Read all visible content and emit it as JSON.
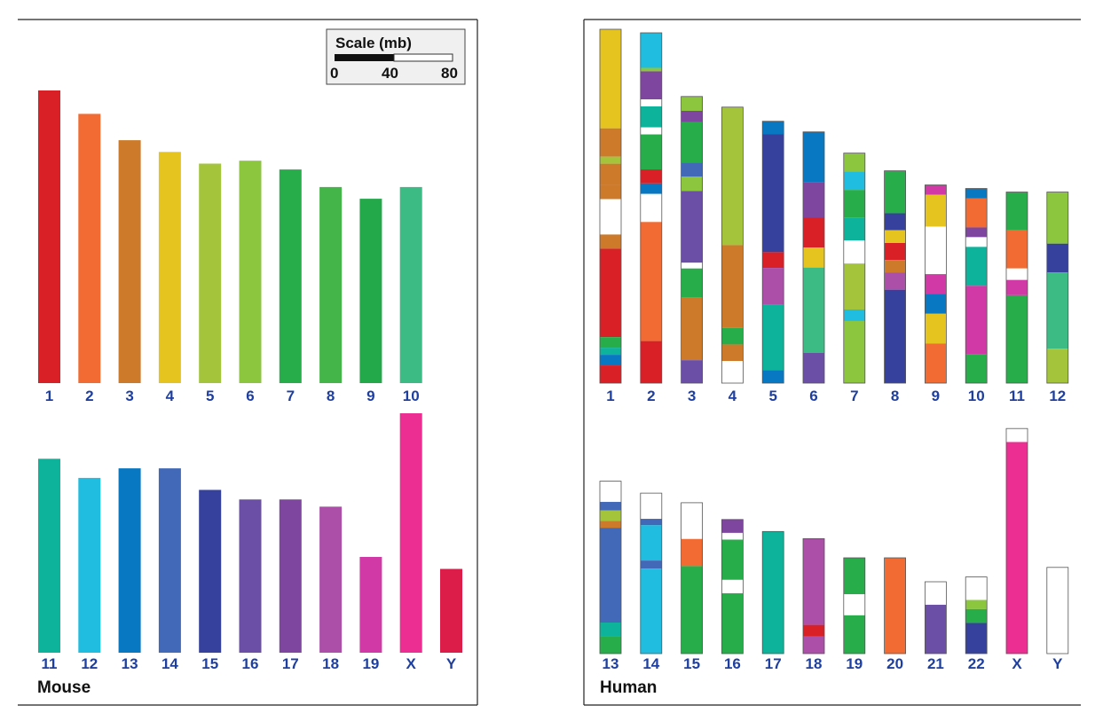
{
  "mouse": {
    "title": "Mouse",
    "row1": [
      {
        "label": "1",
        "color": "#d92027",
        "len": 1.0
      },
      {
        "label": "2",
        "color": "#f26b32",
        "len": 0.92
      },
      {
        "label": "3",
        "color": "#cd7a2a",
        "len": 0.83
      },
      {
        "label": "4",
        "color": "#e5c420",
        "len": 0.79
      },
      {
        "label": "5",
        "color": "#a3c43b",
        "len": 0.75
      },
      {
        "label": "6",
        "color": "#8cc63f",
        "len": 0.76
      },
      {
        "label": "7",
        "color": "#27ae4b",
        "len": 0.73
      },
      {
        "label": "8",
        "color": "#44b649",
        "len": 0.67
      },
      {
        "label": "9",
        "color": "#23a84a",
        "len": 0.63
      },
      {
        "label": "10",
        "color": "#3dbb85",
        "len": 0.67
      }
    ],
    "row2": [
      {
        "label": "11",
        "color": "#0db39a",
        "len": 0.81
      },
      {
        "label": "12",
        "color": "#21bde0",
        "len": 0.73
      },
      {
        "label": "13",
        "color": "#0778c1",
        "len": 0.77
      },
      {
        "label": "14",
        "color": "#4169b7",
        "len": 0.77
      },
      {
        "label": "15",
        "color": "#35419c",
        "len": 0.68
      },
      {
        "label": "16",
        "color": "#6b4fa6",
        "len": 0.64
      },
      {
        "label": "17",
        "color": "#7e469e",
        "len": 0.64
      },
      {
        "label": "18",
        "color": "#ab4fa8",
        "len": 0.61
      },
      {
        "label": "19",
        "color": "#d13aa6",
        "len": 0.4
      },
      {
        "label": "X",
        "color": "#ec2d92",
        "len": 1.0
      },
      {
        "label": "Y",
        "color": "#dc1d4a",
        "len": 0.35
      }
    ]
  },
  "scale": {
    "title": "Scale (mb)",
    "ticks": [
      "0",
      "40",
      "80"
    ]
  },
  "human": {
    "title": "Human",
    "row1": [
      {
        "label": "1",
        "len": 1.0,
        "segs": [
          [
            "#e5c420",
            0.28
          ],
          [
            "#cd7a2a",
            0.08
          ],
          [
            "#a3c43b",
            0.02
          ],
          [
            "#cd7a2a",
            0.06
          ],
          [
            "#cd7a2a",
            0.04
          ],
          [
            "#ffffff",
            0.1
          ],
          [
            "#cd7a2a",
            0.04
          ],
          [
            "#d92027",
            0.25
          ],
          [
            "#27ae4b",
            0.03
          ],
          [
            "#0db39a",
            0.02
          ],
          [
            "#0778c1",
            0.03
          ],
          [
            "#d92027",
            0.05
          ]
        ]
      },
      {
        "label": "2",
        "len": 0.99,
        "segs": [
          [
            "#21bde0",
            0.1
          ],
          [
            "#8cc63f",
            0.01
          ],
          [
            "#7e469e",
            0.08
          ],
          [
            "#ffffff",
            0.02
          ],
          [
            "#0db39a",
            0.06
          ],
          [
            "#ffffff",
            0.02
          ],
          [
            "#27ae4b",
            0.1
          ],
          [
            "#d92027",
            0.04
          ],
          [
            "#0778c1",
            0.03
          ],
          [
            "#ffffff",
            0.08
          ],
          [
            "#f26b32",
            0.34
          ],
          [
            "#d92027",
            0.12
          ]
        ]
      },
      {
        "label": "3",
        "len": 0.81,
        "segs": [
          [
            "#8cc63f",
            0.05
          ],
          [
            "#7e469e",
            0.04
          ],
          [
            "#27ae4b",
            0.14
          ],
          [
            "#4169b7",
            0.05
          ],
          [
            "#8cc63f",
            0.05
          ],
          [
            "#6b4fa6",
            0.25
          ],
          [
            "#ffffff",
            0.02
          ],
          [
            "#27ae4b",
            0.1
          ],
          [
            "#cd7a2a",
            0.22
          ],
          [
            "#6b4fa6",
            0.08
          ]
        ]
      },
      {
        "label": "4",
        "len": 0.78,
        "segs": [
          [
            "#a3c43b",
            0.5
          ],
          [
            "#cd7a2a",
            0.3
          ],
          [
            "#27ae4b",
            0.06
          ],
          [
            "#cd7a2a",
            0.06
          ],
          [
            "#ffffff",
            0.08
          ]
        ]
      },
      {
        "label": "5",
        "len": 0.74,
        "segs": [
          [
            "#0778c1",
            0.05
          ],
          [
            "#35419c",
            0.45
          ],
          [
            "#d92027",
            0.06
          ],
          [
            "#ab4fa8",
            0.14
          ],
          [
            "#0db39a",
            0.25
          ],
          [
            "#0778c1",
            0.05
          ]
        ]
      },
      {
        "label": "6",
        "len": 0.71,
        "segs": [
          [
            "#0778c1",
            0.2
          ],
          [
            "#7e469e",
            0.14
          ],
          [
            "#d92027",
            0.12
          ],
          [
            "#e5c420",
            0.08
          ],
          [
            "#3dbb85",
            0.34
          ],
          [
            "#6b4fa6",
            0.12
          ]
        ]
      },
      {
        "label": "7",
        "len": 0.65,
        "segs": [
          [
            "#8cc63f",
            0.08
          ],
          [
            "#21bde0",
            0.08
          ],
          [
            "#27ae4b",
            0.12
          ],
          [
            "#0db39a",
            0.1
          ],
          [
            "#ffffff",
            0.1
          ],
          [
            "#a3c43b",
            0.2
          ],
          [
            "#21bde0",
            0.05
          ],
          [
            "#8cc63f",
            0.27
          ]
        ]
      },
      {
        "label": "8",
        "len": 0.6,
        "segs": [
          [
            "#27ae4b",
            0.2
          ],
          [
            "#35419c",
            0.08
          ],
          [
            "#e5c420",
            0.06
          ],
          [
            "#d92027",
            0.08
          ],
          [
            "#cd7a2a",
            0.06
          ],
          [
            "#ab4fa8",
            0.08
          ],
          [
            "#35419c",
            0.44
          ]
        ]
      },
      {
        "label": "9",
        "len": 0.56,
        "segs": [
          [
            "#d13aa6",
            0.05
          ],
          [
            "#e5c420",
            0.16
          ],
          [
            "#ffffff",
            0.24
          ],
          [
            "#d13aa6",
            0.1
          ],
          [
            "#0778c1",
            0.1
          ],
          [
            "#e5c420",
            0.15
          ],
          [
            "#f26b32",
            0.2
          ]
        ]
      },
      {
        "label": "10",
        "len": 0.55,
        "segs": [
          [
            "#0778c1",
            0.05
          ],
          [
            "#f26b32",
            0.15
          ],
          [
            "#7e469e",
            0.05
          ],
          [
            "#ffffff",
            0.05
          ],
          [
            "#0db39a",
            0.2
          ],
          [
            "#d13aa6",
            0.35
          ],
          [
            "#27ae4b",
            0.15
          ]
        ]
      },
      {
        "label": "11",
        "len": 0.54,
        "segs": [
          [
            "#27ae4b",
            0.2
          ],
          [
            "#f26b32",
            0.2
          ],
          [
            "#ffffff",
            0.06
          ],
          [
            "#d13aa6",
            0.08
          ],
          [
            "#27ae4b",
            0.46
          ]
        ]
      },
      {
        "label": "12",
        "len": 0.54,
        "segs": [
          [
            "#8cc63f",
            0.27
          ],
          [
            "#35419c",
            0.15
          ],
          [
            "#3dbb85",
            0.4
          ],
          [
            "#a3c43b",
            0.18
          ]
        ]
      }
    ],
    "row2": [
      {
        "label": "13",
        "len": 0.72,
        "segs": [
          [
            "#ffffff",
            0.12
          ],
          [
            "#4169b7",
            0.05
          ],
          [
            "#a3c43b",
            0.06
          ],
          [
            "#cd7a2a",
            0.04
          ],
          [
            "#4169b7",
            0.55
          ],
          [
            "#0db39a",
            0.08
          ],
          [
            "#27ae4b",
            0.1
          ]
        ]
      },
      {
        "label": "14",
        "len": 0.67,
        "segs": [
          [
            "#ffffff",
            0.16
          ],
          [
            "#4169b7",
            0.04
          ],
          [
            "#21bde0",
            0.22
          ],
          [
            "#4169b7",
            0.05
          ],
          [
            "#21bde0",
            0.53
          ]
        ]
      },
      {
        "label": "15",
        "len": 0.63,
        "segs": [
          [
            "#ffffff",
            0.24
          ],
          [
            "#f26b32",
            0.18
          ],
          [
            "#27ae4b",
            0.58
          ]
        ]
      },
      {
        "label": "16",
        "len": 0.56,
        "segs": [
          [
            "#7e469e",
            0.1
          ],
          [
            "#ffffff",
            0.05
          ],
          [
            "#27ae4b",
            0.3
          ],
          [
            "#ffffff",
            0.1
          ],
          [
            "#27ae4b",
            0.45
          ]
        ]
      },
      {
        "label": "17",
        "len": 0.51,
        "segs": [
          [
            "#0db39a",
            1.0
          ]
        ]
      },
      {
        "label": "18",
        "len": 0.48,
        "segs": [
          [
            "#ab4fa8",
            0.75
          ],
          [
            "#d92027",
            0.1
          ],
          [
            "#ab4fa8",
            0.15
          ]
        ]
      },
      {
        "label": "19",
        "len": 0.4,
        "segs": [
          [
            "#27ae4b",
            0.38
          ],
          [
            "#ffffff",
            0.22
          ],
          [
            "#27ae4b",
            0.4
          ]
        ]
      },
      {
        "label": "20",
        "len": 0.4,
        "segs": [
          [
            "#f26b32",
            1.0
          ]
        ]
      },
      {
        "label": "21",
        "len": 0.3,
        "segs": [
          [
            "#ffffff",
            0.32
          ],
          [
            "#6b4fa6",
            0.68
          ]
        ]
      },
      {
        "label": "22",
        "len": 0.32,
        "segs": [
          [
            "#ffffff",
            0.3
          ],
          [
            "#8cc63f",
            0.12
          ],
          [
            "#27ae4b",
            0.18
          ],
          [
            "#35419c",
            0.4
          ]
        ]
      },
      {
        "label": "X",
        "len": 0.94,
        "segs": [
          [
            "#ffffff",
            0.06
          ],
          [
            "#ec2d92",
            0.94
          ]
        ]
      },
      {
        "label": "Y",
        "len": 0.36,
        "segs": [
          [
            "#ffffff",
            1.0
          ]
        ]
      }
    ]
  }
}
